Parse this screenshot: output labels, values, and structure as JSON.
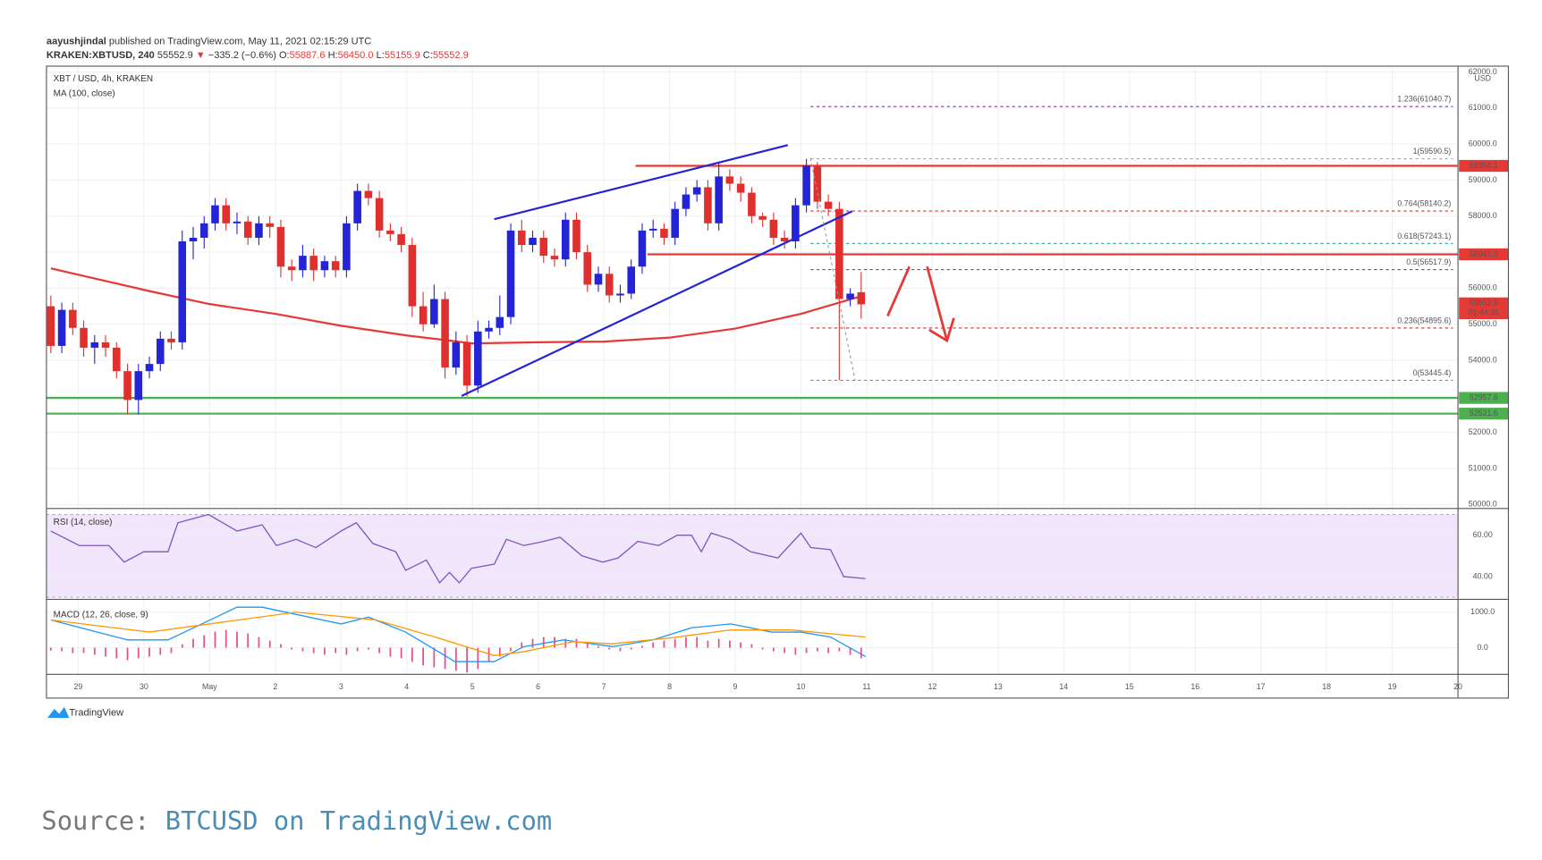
{
  "header": {
    "author": "aayushjindal",
    "published": " published on TradingView.com, May 11, 2021 02:15:29 UTC",
    "symbol": "KRAKEN:XBTUSD, 240",
    "last": "55552.9",
    "arrow": "▼",
    "change": "−335.2 (−0.6%)",
    "o_label": "O:",
    "o": "55887.6",
    "h_label": "H:",
    "h": "56450.0",
    "l_label": "L:",
    "l": "55155.9",
    "c_label": "C:",
    "c": "55552.9"
  },
  "chart_data": {
    "type": "candlestick",
    "title": "XBT / USD, 4h, KRAKEN",
    "unit": "USD",
    "up_color": "#2424d6",
    "down_color": "#e0302e",
    "xlim": [
      -0.4,
      128.5
    ],
    "ylim": [
      49890,
      62160
    ],
    "xticks": [
      {
        "value": 2.5,
        "label": "29"
      },
      {
        "value": 8.5,
        "label": "30"
      },
      {
        "value": 14.5,
        "label": "May"
      },
      {
        "value": 20.5,
        "label": "2"
      },
      {
        "value": 26.5,
        "label": "3"
      },
      {
        "value": 32.5,
        "label": "4"
      },
      {
        "value": 38.5,
        "label": "5"
      },
      {
        "value": 44.5,
        "label": "6"
      },
      {
        "value": 50.5,
        "label": "7"
      },
      {
        "value": 56.5,
        "label": "8"
      },
      {
        "value": 62.5,
        "label": "9"
      },
      {
        "value": 68.5,
        "label": "10"
      },
      {
        "value": 74.5,
        "label": "11"
      },
      {
        "value": 80.5,
        "label": "12"
      },
      {
        "value": 86.5,
        "label": "13"
      },
      {
        "value": 92.5,
        "label": "14"
      },
      {
        "value": 98.5,
        "label": "15"
      },
      {
        "value": 104.5,
        "label": "16"
      },
      {
        "value": 110.5,
        "label": "17"
      },
      {
        "value": 116.5,
        "label": "18"
      },
      {
        "value": 122.5,
        "label": "19"
      },
      {
        "value": 128.5,
        "label": "20"
      }
    ],
    "yticks": [
      {
        "value": 50000,
        "label": "50000.0"
      },
      {
        "value": 51000,
        "label": "51000.0"
      },
      {
        "value": 52000,
        "label": "52000.0"
      },
      {
        "value": 53000,
        "label": "53000.0"
      },
      {
        "value": 54000,
        "label": "54000.0"
      },
      {
        "value": 55000,
        "label": "55000.0"
      },
      {
        "value": 56000,
        "label": "56000.0"
      },
      {
        "value": 57000,
        "label": "57000.0"
      },
      {
        "value": 58000,
        "label": "58000.0"
      },
      {
        "value": 59000,
        "label": "59000.0"
      },
      {
        "value": 60000,
        "label": "60000.0"
      },
      {
        "value": 61000,
        "label": "61000.0"
      },
      {
        "value": 62000,
        "label": "62000.0"
      }
    ],
    "candles": [
      [
        55500,
        55800,
        54200,
        54400
      ],
      [
        54400,
        55600,
        54200,
        55400
      ],
      [
        55400,
        55600,
        54700,
        54900
      ],
      [
        54900,
        55100,
        54100,
        54350
      ],
      [
        54350,
        54700,
        53900,
        54500
      ],
      [
        54500,
        54700,
        54100,
        54350
      ],
      [
        54350,
        54500,
        53500,
        53700
      ],
      [
        53700,
        53900,
        52500,
        52900
      ],
      [
        52900,
        53900,
        52500,
        53700
      ],
      [
        53700,
        54100,
        53500,
        53900
      ],
      [
        53900,
        54800,
        53700,
        54600
      ],
      [
        54600,
        54800,
        54300,
        54500
      ],
      [
        54500,
        57600,
        54300,
        57300
      ],
      [
        57300,
        57700,
        56800,
        57400
      ],
      [
        57400,
        58000,
        57100,
        57800
      ],
      [
        57800,
        58500,
        57600,
        58300
      ],
      [
        58300,
        58500,
        57600,
        57800
      ],
      [
        57800,
        58100,
        57500,
        57850
      ],
      [
        57850,
        58000,
        57200,
        57400
      ],
      [
        57400,
        58000,
        57200,
        57800
      ],
      [
        57800,
        58000,
        57400,
        57700
      ],
      [
        57700,
        57900,
        56300,
        56600
      ],
      [
        56600,
        56800,
        56200,
        56500
      ],
      [
        56500,
        57200,
        56300,
        56900
      ],
      [
        56900,
        57100,
        56200,
        56500
      ],
      [
        56500,
        56900,
        56300,
        56750
      ],
      [
        56750,
        56900,
        56300,
        56500
      ],
      [
        56500,
        58000,
        56300,
        57800
      ],
      [
        57800,
        58900,
        57600,
        58700
      ],
      [
        58700,
        58900,
        58300,
        58500
      ],
      [
        58500,
        58700,
        57400,
        57600
      ],
      [
        57600,
        57800,
        57300,
        57500
      ],
      [
        57500,
        57700,
        57000,
        57200
      ],
      [
        57200,
        57400,
        55200,
        55500
      ],
      [
        55500,
        55900,
        54800,
        55000
      ],
      [
        55000,
        56100,
        54900,
        55700
      ],
      [
        55700,
        55900,
        53500,
        53800
      ],
      [
        53800,
        54800,
        53600,
        54500
      ],
      [
        54500,
        54700,
        53000,
        53300
      ],
      [
        53300,
        55100,
        53100,
        54800
      ],
      [
        54800,
        55100,
        54600,
        54900
      ],
      [
        54900,
        55800,
        54700,
        55200
      ],
      [
        55200,
        57800,
        55000,
        57600
      ],
      [
        57600,
        57900,
        57000,
        57200
      ],
      [
        57200,
        57600,
        57000,
        57400
      ],
      [
        57400,
        57600,
        56700,
        56900
      ],
      [
        56900,
        57100,
        56600,
        56800
      ],
      [
        56800,
        58100,
        56600,
        57900
      ],
      [
        57900,
        58100,
        56800,
        57000
      ],
      [
        57000,
        57200,
        55900,
        56100
      ],
      [
        56100,
        56600,
        55900,
        56400
      ],
      [
        56400,
        56600,
        55600,
        55800
      ],
      [
        55800,
        56100,
        55600,
        55850
      ],
      [
        55850,
        56800,
        55700,
        56600
      ],
      [
        56600,
        57800,
        56400,
        57600
      ],
      [
        57600,
        57900,
        57400,
        57650
      ],
      [
        57650,
        57800,
        57200,
        57400
      ],
      [
        57400,
        58400,
        57200,
        58200
      ],
      [
        58200,
        58800,
        58000,
        58600
      ],
      [
        58600,
        59000,
        58400,
        58800
      ],
      [
        58800,
        59000,
        57600,
        57800
      ],
      [
        57800,
        59500,
        57600,
        59100
      ],
      [
        59100,
        59300,
        58700,
        58900
      ],
      [
        58900,
        59100,
        58400,
        58650
      ],
      [
        58650,
        58800,
        57800,
        58000
      ],
      [
        58000,
        58100,
        57700,
        57900
      ],
      [
        57900,
        58100,
        57200,
        57400
      ],
      [
        57400,
        57600,
        57100,
        57300
      ],
      [
        57300,
        58500,
        57100,
        58300
      ],
      [
        58300,
        59590,
        58100,
        59400
      ],
      [
        59400,
        59500,
        58200,
        58400
      ],
      [
        58400,
        58600,
        58000,
        58200
      ],
      [
        58200,
        58400,
        53445.4,
        55700
      ],
      [
        55700,
        56000,
        55500,
        55850
      ],
      [
        55887.6,
        56450,
        55155.9,
        55552.9
      ]
    ],
    "ma": {
      "name": "MA (100, close)",
      "color": "#e53935",
      "x": [
        0,
        9,
        14.5,
        20.5,
        26.5,
        32.5,
        38.5,
        44.5,
        50.5,
        56.5,
        62.5,
        68.5,
        74
      ],
      "values": [
        56550,
        55920,
        55560,
        55290,
        54960,
        54690,
        54470,
        54500,
        54520,
        54630,
        54880,
        55290,
        55780
      ]
    },
    "fib": [
      {
        "label": "1.236(61040.7)",
        "value": 61040.7,
        "color": "#9c27b0"
      },
      {
        "label": "1(59590.5)",
        "value": 59590.5,
        "color": "#7fa8b8"
      },
      {
        "label": "0.764(58140.2)",
        "value": 58140.2,
        "color": "#d32f2f"
      },
      {
        "label": "0.618(57243.1)",
        "value": 57243.1,
        "color": "#26a69a"
      },
      {
        "label": "0.5(56517.9)",
        "value": 56517.9,
        "color": "#8d4b4b"
      },
      {
        "label": "0.236(54895.6)",
        "value": 54895.6,
        "color": "#d32f2f"
      },
      {
        "label": "0(53445.4)",
        "value": 53445.4,
        "color": "#888888"
      }
    ],
    "levels": [
      {
        "label": "59394.1",
        "value": 59394.1,
        "color": "#e53935"
      },
      {
        "label": "56941.0",
        "value": 56941.0,
        "color": "#e53935"
      },
      {
        "label": "52957.6",
        "value": 52957.6,
        "color": "#4caf50"
      },
      {
        "label": "52521.6",
        "value": 52521.6,
        "color": "#4caf50"
      }
    ],
    "last_price": {
      "label": "55552.9",
      "value": 55552.9,
      "timer": "01:44:35",
      "color": "#e53935"
    },
    "rsi": {
      "name": "RSI (14, close)",
      "color": "#7e57c2",
      "ylim": [
        29,
        72.9
      ],
      "band": [
        30,
        70
      ],
      "yticks": [
        {
          "value": 60,
          "label": "60.00"
        },
        {
          "value": 40,
          "label": "40.00"
        }
      ],
      "x": [
        0,
        2.6,
        5.3,
        6.7,
        8.5,
        10.7,
        11.6,
        14.4,
        17,
        19.3,
        20.6,
        22.4,
        24.2,
        26.5,
        27.9,
        29.4,
        31.5,
        32.4,
        34.3,
        35.5,
        36.4,
        37.3,
        38.4,
        40.5,
        41.6,
        43.2,
        45,
        46.5,
        48.5,
        50.4,
        51.8,
        53.6,
        55.5,
        57.2,
        58.5,
        59.4,
        60.3,
        62.1,
        63.9,
        66.4,
        68.5,
        69.4,
        71.2,
        72.4,
        74.4
      ],
      "values": [
        62,
        55,
        55,
        47,
        52,
        52,
        66,
        70,
        62,
        65,
        55,
        58,
        54,
        62,
        66,
        56,
        52,
        43,
        48,
        37,
        42,
        37,
        44,
        46,
        58,
        55,
        57,
        59,
        50,
        47,
        49,
        57,
        55,
        60,
        60,
        52,
        61,
        58,
        52,
        49,
        61,
        54,
        53,
        40,
        39
      ]
    },
    "macd": {
      "name": "MACD (12, 26, close, 9)",
      "ylim": [
        -750,
        1361
      ],
      "yticks": [
        {
          "value": 1000,
          "label": "1000.0"
        },
        {
          "value": 0,
          "label": "0.0"
        }
      ],
      "line": {
        "color": "#2196f3",
        "x": [
          0,
          7,
          10.7,
          17,
          19.3,
          26.5,
          29,
          32.4,
          36.9,
          40.5,
          43.2,
          46.8,
          51.3,
          55,
          58.5,
          62.1,
          65.8,
          68.5,
          71.2,
          74.4
        ],
        "values": [
          780,
          220,
          220,
          1140,
          1140,
          670,
          860,
          440,
          -390,
          -390,
          30,
          220,
          30,
          220,
          560,
          670,
          440,
          440,
          300,
          -250
        ]
      },
      "signal": {
        "color": "#ff9800",
        "x": [
          0,
          9,
          22.4,
          29.7,
          35.1,
          40.5,
          43.2,
          47.7,
          51.3,
          56.7,
          62.1,
          67.6,
          74.4
        ],
        "values": [
          780,
          440,
          1000,
          780,
          300,
          -220,
          -110,
          170,
          110,
          280,
          500,
          500,
          300
        ]
      },
      "histogram": {
        "color": "#e8508a",
        "values": [
          -80,
          -100,
          -150,
          -150,
          -200,
          -250,
          -300,
          -350,
          -300,
          -250,
          -200,
          -150,
          100,
          250,
          350,
          450,
          500,
          450,
          400,
          300,
          200,
          100,
          -50,
          -100,
          -150,
          -200,
          -150,
          -200,
          -100,
          -50,
          -150,
          -250,
          -300,
          -400,
          -500,
          -550,
          -600,
          -650,
          -700,
          -600,
          -400,
          -250,
          -100,
          150,
          250,
          300,
          300,
          250,
          250,
          150,
          50,
          -50,
          -100,
          -50,
          50,
          150,
          200,
          250,
          300,
          300,
          200,
          250,
          200,
          150,
          100,
          -50,
          -100,
          -150,
          -200,
          -150,
          -100,
          -150,
          -100,
          -200,
          -300
        ]
      }
    }
  },
  "footer": {
    "brand": "TradingView",
    "source_label": "Source:",
    "source": "BTCUSD on TradingView.com"
  }
}
